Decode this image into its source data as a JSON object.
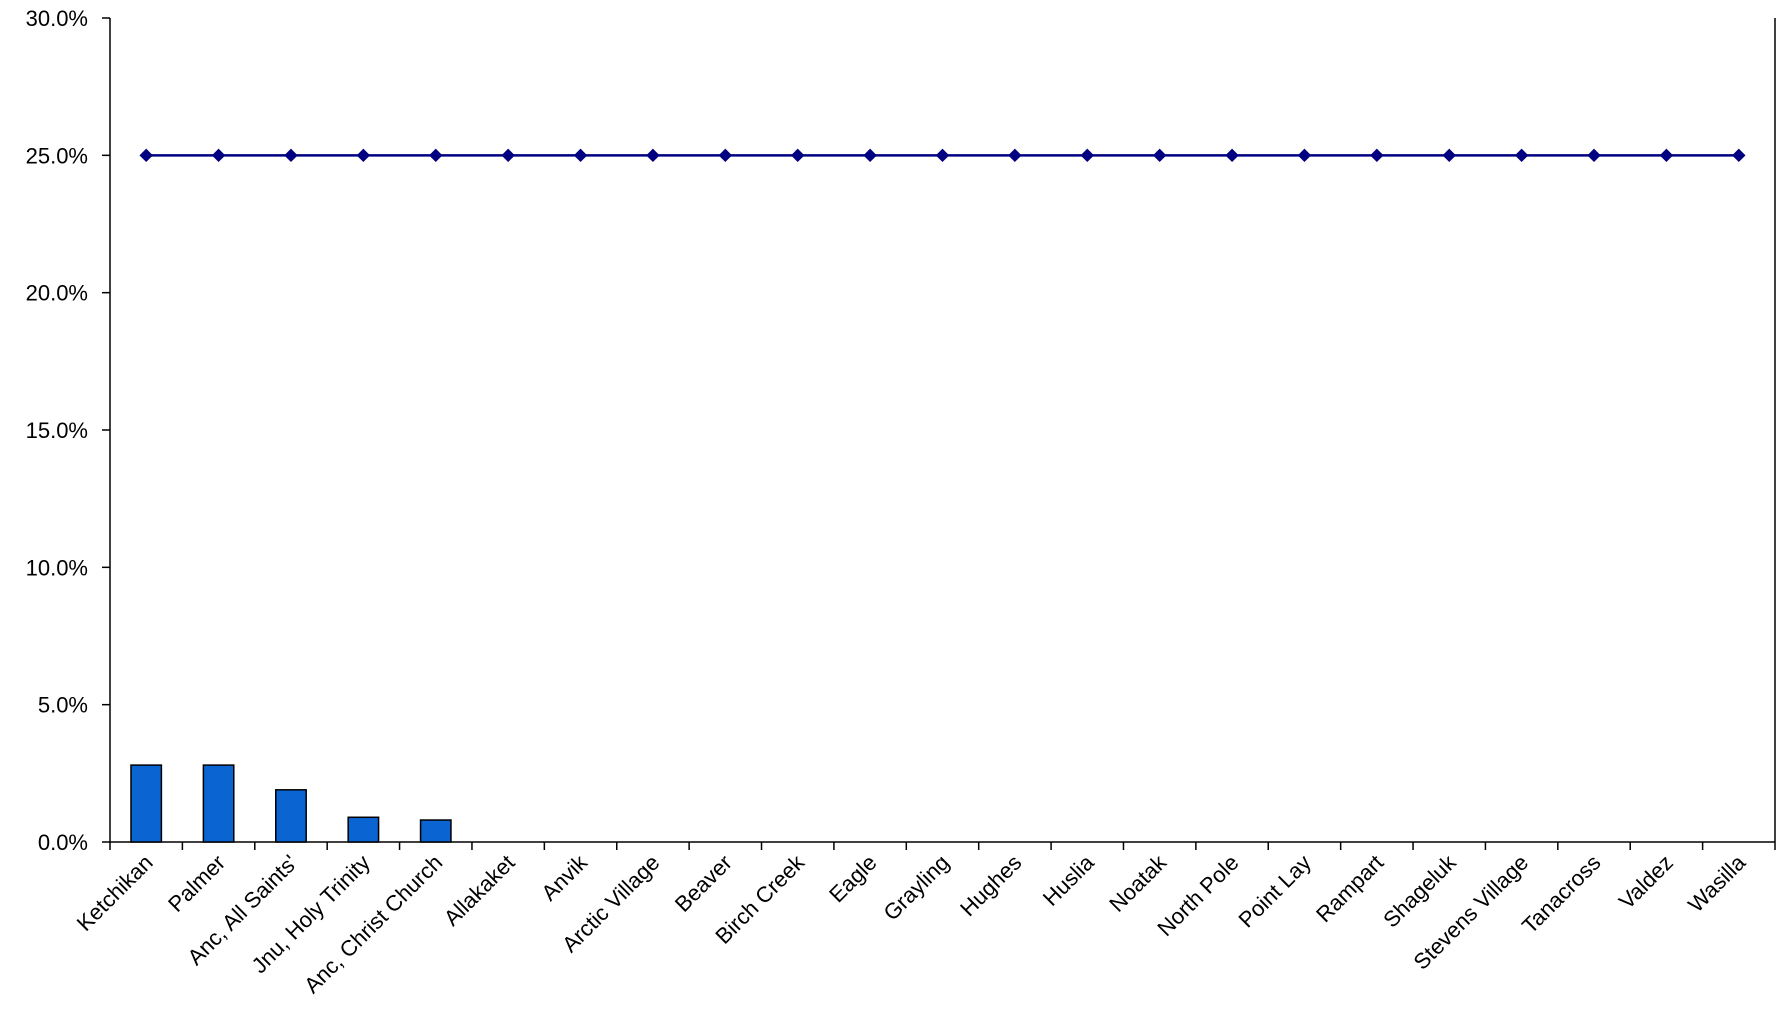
{
  "chart_data": {
    "type": "bar",
    "categories": [
      "Ketchikan",
      "Palmer",
      "Anc, All Saints'",
      "Jnu, Holy Trinity",
      "Anc, Christ Church",
      "Allakaket",
      "Anvik",
      "Arctic Village",
      "Beaver",
      "Birch Creek",
      "Eagle",
      "Grayling",
      "Hughes",
      "Huslia",
      "Noatak",
      "North Pole",
      "Point Lay",
      "Rampart",
      "Shageluk",
      "Stevens Village",
      "Tanacross",
      "Valdez",
      "Wasilla"
    ],
    "series": [
      {
        "type": "bar",
        "color": "#0A64D2",
        "values": [
          2.8,
          2.8,
          1.9,
          0.9,
          0.8,
          0,
          0,
          0,
          0,
          0,
          0,
          0,
          0,
          0,
          0,
          0,
          0,
          0,
          0,
          0,
          0,
          0,
          0
        ]
      },
      {
        "type": "line",
        "color": "#000080",
        "marker": "diamond",
        "values": [
          25,
          25,
          25,
          25,
          25,
          25,
          25,
          25,
          25,
          25,
          25,
          25,
          25,
          25,
          25,
          25,
          25,
          25,
          25,
          25,
          25,
          25,
          25
        ]
      }
    ],
    "ylim": [
      0,
      30
    ],
    "yticks": [
      0,
      5,
      10,
      15,
      20,
      25,
      30
    ],
    "ytick_labels": [
      "0.0%",
      "5.0%",
      "10.0%",
      "15.0%",
      "20.0%",
      "25.0%",
      "30.0%"
    ],
    "grid": false,
    "legend": "none",
    "title": "",
    "xlabel": "",
    "ylabel": ""
  }
}
